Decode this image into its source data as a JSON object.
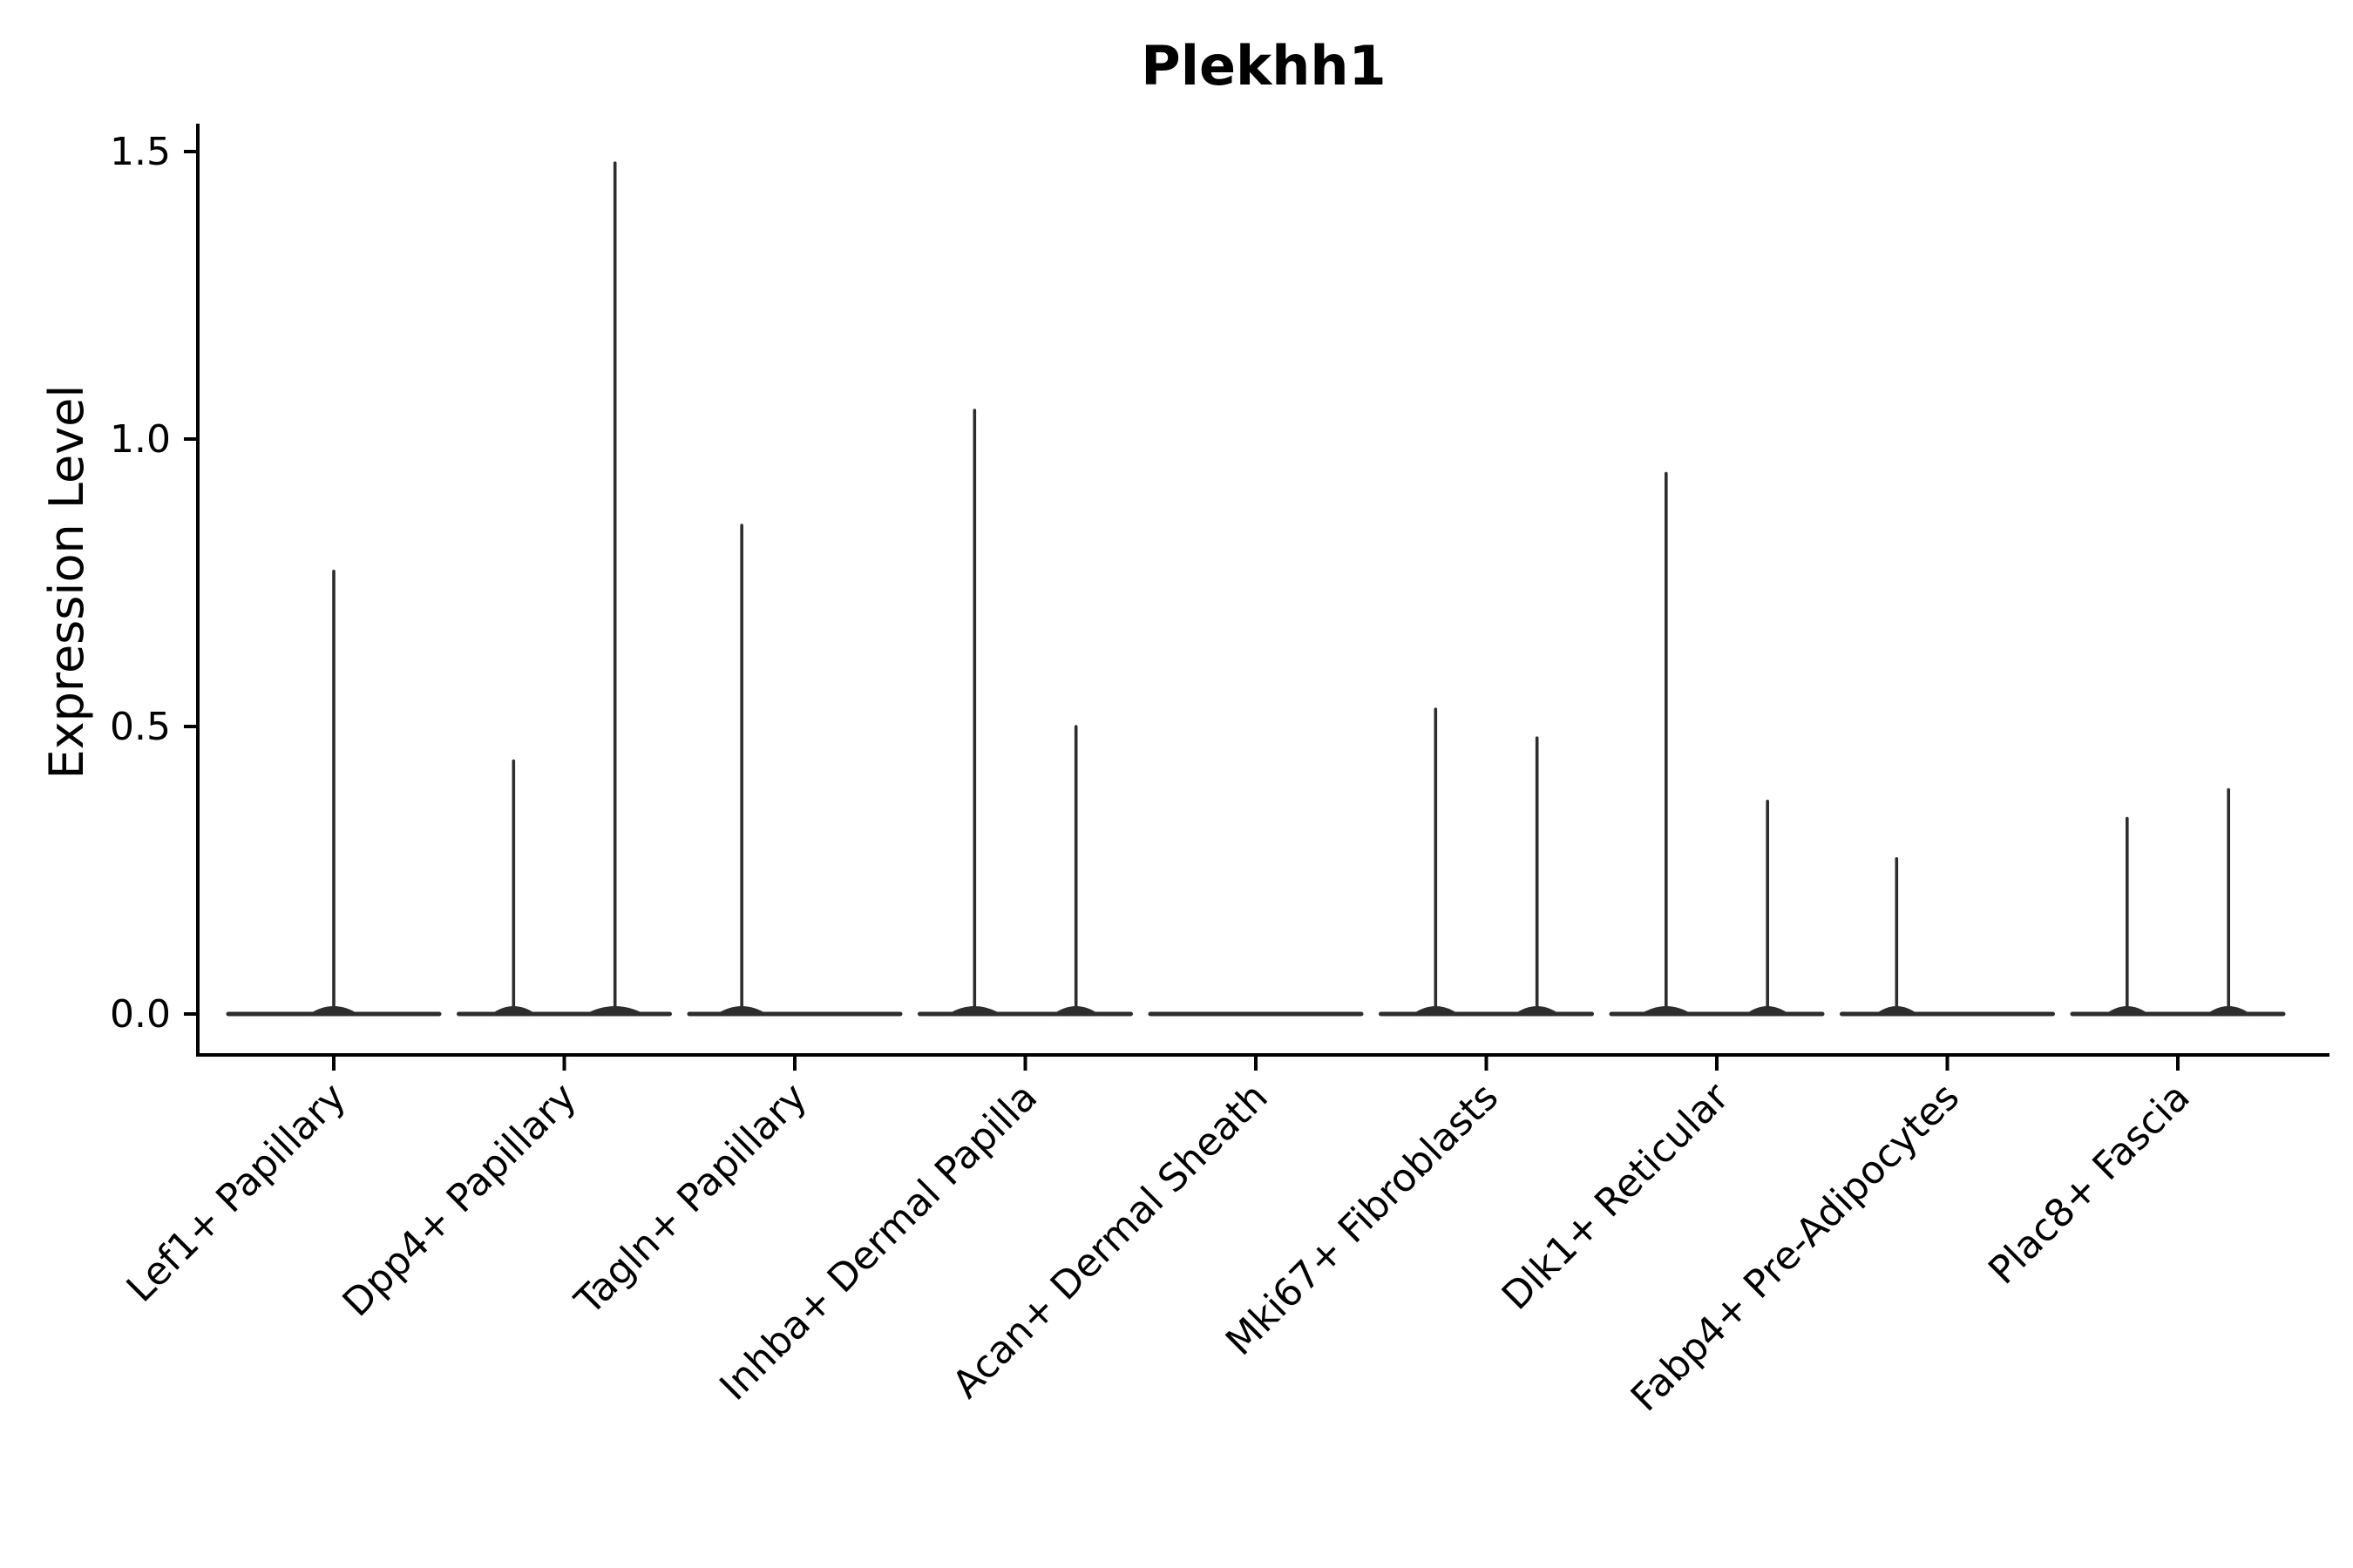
{
  "page": {
    "background": "#ffffff"
  },
  "chart_data": {
    "type": "violin",
    "title": "Plekhh1",
    "ylabel": "Expression Level",
    "xlabel": "",
    "grid": false,
    "legend": null,
    "ylim": [
      -0.07,
      1.55
    ],
    "yticks": [
      {
        "value": 0.0,
        "label": "0.0"
      },
      {
        "value": 0.5,
        "label": "0.5"
      },
      {
        "value": 1.0,
        "label": "1.0"
      },
      {
        "value": 1.5,
        "label": "1.5"
      }
    ],
    "categories": [
      "Lef1+ Papillary",
      "Dpp4+ Papillary",
      "Tagln+ Papillary",
      "Inhba+ Dermal Papilla",
      "Acan+ Dermal Sheath",
      "Mki67+ Fibroblasts",
      "Dlk1+ Reticular",
      "Fabp4+ Pre-Adipocytes",
      "Plac8+ Fascia"
    ],
    "violins": [
      {
        "category": "Lef1+ Papillary",
        "baseline_value": 0,
        "spikes": [
          {
            "pos": 0.0,
            "value": 0.77
          }
        ]
      },
      {
        "category": "Dpp4+ Papillary",
        "baseline_value": 0,
        "spikes": [
          {
            "pos": -0.22,
            "value": 0.44
          },
          {
            "pos": 0.22,
            "value": 1.48
          }
        ]
      },
      {
        "category": "Tagln+ Papillary",
        "baseline_value": 0,
        "spikes": [
          {
            "pos": -0.23,
            "value": 0.85
          }
        ]
      },
      {
        "category": "Inhba+ Dermal Papilla",
        "baseline_value": 0,
        "spikes": [
          {
            "pos": -0.22,
            "value": 1.05
          },
          {
            "pos": 0.22,
            "value": 0.5
          }
        ]
      },
      {
        "category": "Acan+ Dermal Sheath",
        "baseline_value": 0,
        "spikes": []
      },
      {
        "category": "Mki67+ Fibroblasts",
        "baseline_value": 0,
        "spikes": [
          {
            "pos": -0.22,
            "value": 0.53
          },
          {
            "pos": 0.22,
            "value": 0.48
          }
        ]
      },
      {
        "category": "Dlk1+ Reticular",
        "baseline_value": 0,
        "spikes": [
          {
            "pos": -0.22,
            "value": 0.94
          },
          {
            "pos": 0.22,
            "value": 0.37
          }
        ]
      },
      {
        "category": "Fabp4+ Pre-Adipocytes",
        "baseline_value": 0,
        "spikes": [
          {
            "pos": -0.22,
            "value": 0.27
          }
        ]
      },
      {
        "category": "Plac8+ Fascia",
        "baseline_value": 0,
        "spikes": [
          {
            "pos": -0.22,
            "value": 0.34
          },
          {
            "pos": 0.22,
            "value": 0.39
          }
        ]
      }
    ],
    "colors": {
      "violin_line": "#2d2d2d",
      "axis": "#000000",
      "text": "#000000",
      "background": "#ffffff"
    }
  }
}
